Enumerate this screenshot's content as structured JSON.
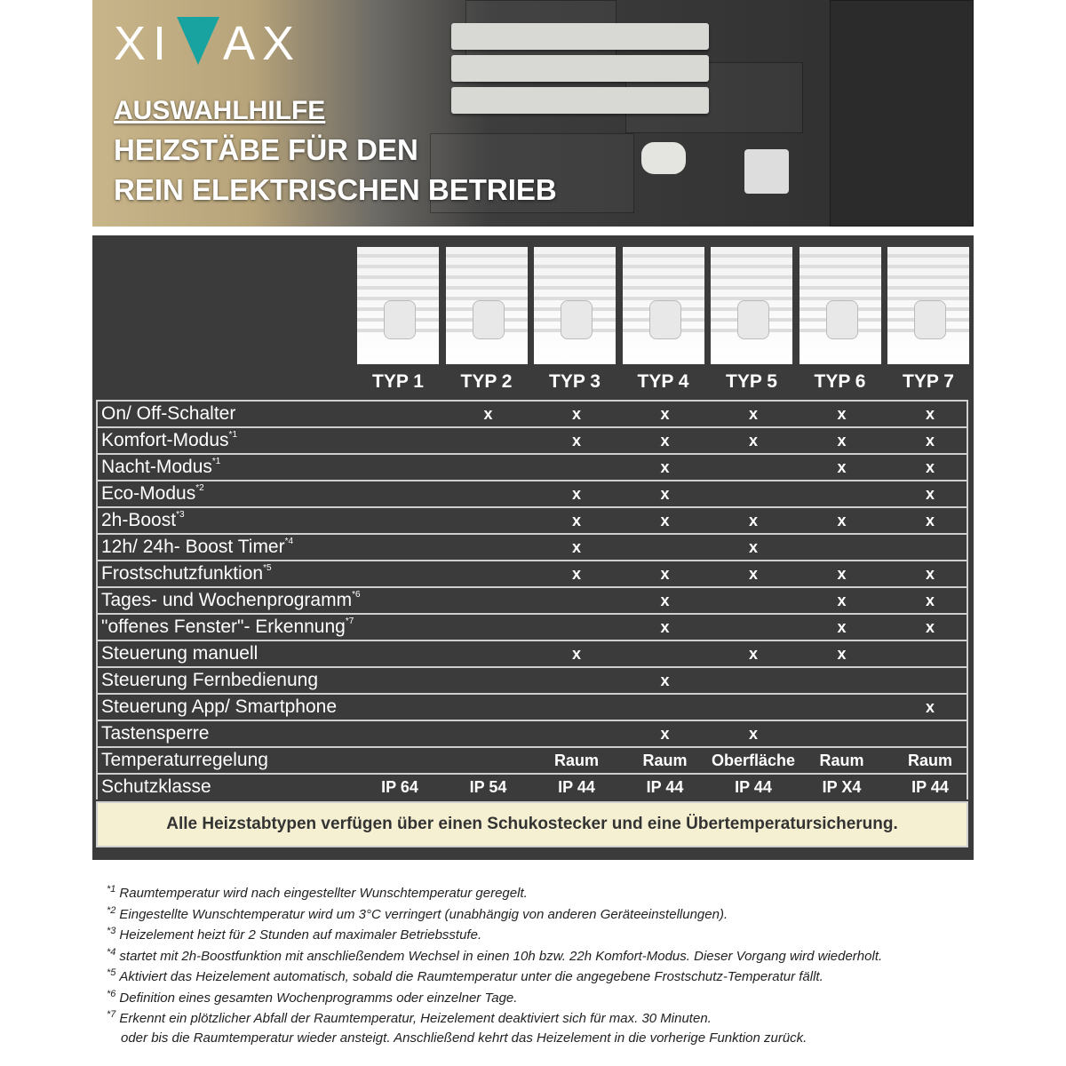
{
  "hero": {
    "logo": "XIMAX",
    "title_1": "AUSWAHLHILFE",
    "title_2": "HEIZSTÄBE FÜR DEN",
    "title_3": "REIN ELEKTRISCHEN BETRIEB",
    "accent": "#19a3a0"
  },
  "types": [
    "TYP 1",
    "TYP 2",
    "TYP 3",
    "TYP 4",
    "TYP 5",
    "TYP 6",
    "TYP 7"
  ],
  "rows": [
    {
      "label": "On/ Off-Schalter",
      "sup": "",
      "cells": [
        "",
        "x",
        "x",
        "x",
        "x",
        "x",
        "x"
      ]
    },
    {
      "label": "Komfort-Modus",
      "sup": "*1",
      "cells": [
        "",
        "",
        "x",
        "x",
        "x",
        "x",
        "x"
      ]
    },
    {
      "label": "Nacht-Modus",
      "sup": "*1",
      "cells": [
        "",
        "",
        "",
        "x",
        "",
        "x",
        "x"
      ]
    },
    {
      "label": "Eco-Modus",
      "sup": "*2",
      "cells": [
        "",
        "",
        "x",
        "x",
        "",
        "",
        "x"
      ]
    },
    {
      "label": "2h-Boost",
      "sup": "*3",
      "cells": [
        "",
        "",
        "x",
        "x",
        "x",
        "x",
        "x"
      ]
    },
    {
      "label": "12h/ 24h- Boost Timer",
      "sup": "*4",
      "cells": [
        "",
        "",
        "x",
        "",
        "x",
        "",
        ""
      ]
    },
    {
      "label": "Frostschutzfunktion",
      "sup": "*5",
      "cells": [
        "",
        "",
        "x",
        "x",
        "x",
        "x",
        "x"
      ]
    },
    {
      "label": "Tages- und Wochenprogramm",
      "sup": "*6",
      "cells": [
        "",
        "",
        "",
        "x",
        "",
        "x",
        "x"
      ]
    },
    {
      "label": "\"offenes Fenster\"- Erkennung",
      "sup": "*7",
      "cells": [
        "",
        "",
        "",
        "x",
        "",
        "x",
        "x"
      ]
    },
    {
      "label": "Steuerung manuell",
      "sup": "",
      "cells": [
        "",
        "",
        "x",
        "",
        "x",
        "x",
        ""
      ]
    },
    {
      "label": "Steuerung Fernbedienung",
      "sup": "",
      "cells": [
        "",
        "",
        "",
        "x",
        "",
        "",
        ""
      ]
    },
    {
      "label": "Steuerung App/ Smartphone",
      "sup": "",
      "cells": [
        "",
        "",
        "",
        "",
        "",
        "",
        "x"
      ]
    },
    {
      "label": "Tastensperre",
      "sup": "",
      "cells": [
        "",
        "",
        "",
        "x",
        "x",
        "",
        ""
      ]
    },
    {
      "label": "Temperaturregelung",
      "sup": "",
      "cells": [
        "",
        "",
        "Raum",
        "Raum",
        "Oberfläche",
        "Raum",
        "Raum"
      ]
    },
    {
      "label": "Schutzklasse",
      "sup": "",
      "cells": [
        "IP 64",
        "IP 54",
        "IP 44",
        "IP 44",
        "IP 44",
        "IP X4",
        "IP 44"
      ]
    }
  ],
  "note": "Alle Heizstabtypen verfügen über einen Schukostecker und eine Übertemperatursicherung.",
  "footnotes": [
    {
      "sup": "*1",
      "text": "Raumtemperatur wird nach eingestellter Wunschtemperatur geregelt."
    },
    {
      "sup": "*2",
      "text": "Eingestellte Wunschtemperatur wird um 3°C verringert (unabhängig von anderen Geräteeinstellungen)."
    },
    {
      "sup": "*3",
      "text": "Heizelement heizt für 2 Stunden auf maximaler Betriebsstufe."
    },
    {
      "sup": "*4",
      "text": "startet mit 2h-Boostfunktion mit anschließendem Wechsel in einen 10h bzw. 22h Komfort-Modus. Dieser Vorgang wird wiederholt."
    },
    {
      "sup": "*5",
      "text": "Aktiviert das Heizelement automatisch, sobald die Raumtemperatur unter die angegebene Frostschutz-Temperatur fällt."
    },
    {
      "sup": "*6",
      "text": "Definition eines gesamten Wochenprogramms oder einzelner Tage."
    },
    {
      "sup": "*7",
      "text": "Erkennt ein plötzlicher Abfall der Raumtemperatur, Heizelement deaktiviert sich für max. 30 Minuten."
    },
    {
      "sup": "",
      "text": "oder bis die Raumtemperatur wieder ansteigt. Anschließend kehrt das Heizelement in die vorherige Funktion zurück."
    }
  ]
}
